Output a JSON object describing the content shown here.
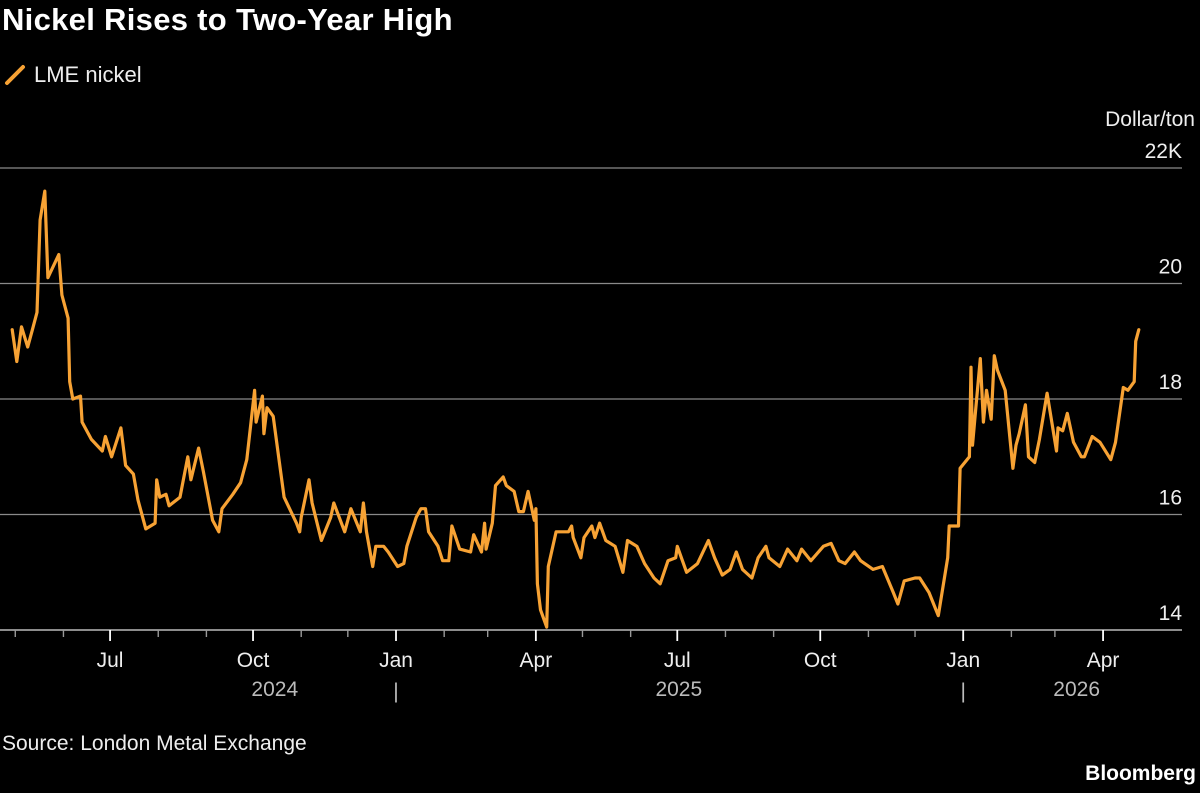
{
  "title": "Nickel Rises to Two-Year High",
  "source": "Source: London Metal Exchange",
  "brand": "Bloomberg",
  "colors": {
    "line": "#f7a234",
    "grid": "#8a8a8a",
    "background": "#000000"
  },
  "chart_data": {
    "type": "line",
    "title": "Nickel Rises to Two-Year High",
    "ylabel": "Dollar/ton",
    "ylim": [
      14,
      22
    ],
    "yticks": [
      {
        "value": 22,
        "label": "22K"
      },
      {
        "value": 20,
        "label": "20"
      },
      {
        "value": 18,
        "label": "18"
      },
      {
        "value": 16,
        "label": "16"
      },
      {
        "value": 14,
        "label": "14"
      }
    ],
    "xlim": [
      "2024-04-24",
      "2026-04-30"
    ],
    "xticks": [
      {
        "date": "2024-07-01",
        "label": "Jul"
      },
      {
        "date": "2024-10-01",
        "label": "Oct"
      },
      {
        "date": "2025-01-01",
        "label": "Jan"
      },
      {
        "date": "2025-04-01",
        "label": "Apr"
      },
      {
        "date": "2025-07-01",
        "label": "Jul"
      },
      {
        "date": "2025-10-01",
        "label": "Oct"
      },
      {
        "date": "2026-01-01",
        "label": "Jan"
      },
      {
        "date": "2026-04-01",
        "label": "Apr"
      }
    ],
    "years": [
      {
        "label": "2024",
        "center": "2024-10-15"
      },
      {
        "label": "2025",
        "center": "2025-07-02"
      },
      {
        "label": "2026",
        "center": "2026-03-15"
      }
    ],
    "year_separator": "|",
    "grid": true,
    "legend": "top-left",
    "series": [
      {
        "name": "LME nickel",
        "color": "#f7a234",
        "points": [
          [
            "2024-04-29",
            19.2
          ],
          [
            "2024-05-02",
            18.65
          ],
          [
            "2024-05-05",
            19.25
          ],
          [
            "2024-05-09",
            18.9
          ],
          [
            "2024-05-12",
            19.2
          ],
          [
            "2024-05-15",
            19.5
          ],
          [
            "2024-05-17",
            21.1
          ],
          [
            "2024-05-20",
            21.6
          ],
          [
            "2024-05-22",
            20.1
          ],
          [
            "2024-05-29",
            20.5
          ],
          [
            "2024-05-31",
            19.8
          ],
          [
            "2024-06-04",
            19.4
          ],
          [
            "2024-06-05",
            18.3
          ],
          [
            "2024-06-07",
            18.0
          ],
          [
            "2024-06-12",
            18.05
          ],
          [
            "2024-06-13",
            17.6
          ],
          [
            "2024-06-19",
            17.3
          ],
          [
            "2024-06-26",
            17.1
          ],
          [
            "2024-06-28",
            17.35
          ],
          [
            "2024-07-02",
            17.0
          ],
          [
            "2024-07-08",
            17.5
          ],
          [
            "2024-07-11",
            16.85
          ],
          [
            "2024-07-16",
            16.7
          ],
          [
            "2024-07-19",
            16.25
          ],
          [
            "2024-07-24",
            15.75
          ],
          [
            "2024-07-30",
            15.85
          ],
          [
            "2024-07-31",
            16.6
          ],
          [
            "2024-08-02",
            16.3
          ],
          [
            "2024-08-06",
            16.35
          ],
          [
            "2024-08-08",
            16.15
          ],
          [
            "2024-08-15",
            16.3
          ],
          [
            "2024-08-20",
            17.0
          ],
          [
            "2024-08-22",
            16.6
          ],
          [
            "2024-08-27",
            17.15
          ],
          [
            "2024-08-30",
            16.75
          ],
          [
            "2024-09-05",
            15.9
          ],
          [
            "2024-09-09",
            15.7
          ],
          [
            "2024-09-11",
            16.1
          ],
          [
            "2024-09-18",
            16.35
          ],
          [
            "2024-09-23",
            16.55
          ],
          [
            "2024-09-27",
            16.95
          ],
          [
            "2024-10-02",
            18.15
          ],
          [
            "2024-10-03",
            17.6
          ],
          [
            "2024-10-07",
            18.05
          ],
          [
            "2024-10-08",
            17.4
          ],
          [
            "2024-10-10",
            17.85
          ],
          [
            "2024-10-14",
            17.7
          ],
          [
            "2024-10-18",
            16.9
          ],
          [
            "2024-10-21",
            16.3
          ],
          [
            "2024-10-29",
            15.85
          ],
          [
            "2024-10-31",
            15.7
          ],
          [
            "2024-11-01",
            15.95
          ],
          [
            "2024-11-06",
            16.6
          ],
          [
            "2024-11-08",
            16.2
          ],
          [
            "2024-11-14",
            15.55
          ],
          [
            "2024-11-20",
            15.95
          ],
          [
            "2024-11-22",
            16.2
          ],
          [
            "2024-11-29",
            15.7
          ],
          [
            "2024-12-03",
            16.1
          ],
          [
            "2024-12-09",
            15.7
          ],
          [
            "2024-12-11",
            16.2
          ],
          [
            "2024-12-13",
            15.7
          ],
          [
            "2024-12-17",
            15.1
          ],
          [
            "2024-12-19",
            15.45
          ],
          [
            "2024-12-24",
            15.45
          ],
          [
            "2024-12-27",
            15.35
          ],
          [
            "2025-01-02",
            15.1
          ],
          [
            "2025-01-06",
            15.15
          ],
          [
            "2025-01-08",
            15.45
          ],
          [
            "2025-01-14",
            15.95
          ],
          [
            "2025-01-17",
            16.1
          ],
          [
            "2025-01-20",
            16.1
          ],
          [
            "2025-01-22",
            15.7
          ],
          [
            "2025-01-28",
            15.45
          ],
          [
            "2025-01-31",
            15.2
          ],
          [
            "2025-02-04",
            15.2
          ],
          [
            "2025-02-06",
            15.8
          ],
          [
            "2025-02-11",
            15.4
          ],
          [
            "2025-02-18",
            15.35
          ],
          [
            "2025-02-20",
            15.65
          ],
          [
            "2025-02-25",
            15.35
          ],
          [
            "2025-02-27",
            15.85
          ],
          [
            "2025-02-28",
            15.4
          ],
          [
            "2025-03-04",
            15.85
          ],
          [
            "2025-03-06",
            16.5
          ],
          [
            "2025-03-11",
            16.65
          ],
          [
            "2025-03-13",
            16.5
          ],
          [
            "2025-03-18",
            16.4
          ],
          [
            "2025-03-21",
            16.05
          ],
          [
            "2025-03-24",
            16.05
          ],
          [
            "2025-03-27",
            16.4
          ],
          [
            "2025-03-31",
            15.9
          ],
          [
            "2025-04-01",
            16.1
          ],
          [
            "2025-04-02",
            14.8
          ],
          [
            "2025-04-04",
            14.35
          ],
          [
            "2025-04-08",
            14.05
          ],
          [
            "2025-04-09",
            15.1
          ],
          [
            "2025-04-14",
            15.7
          ],
          [
            "2025-04-22",
            15.7
          ],
          [
            "2025-04-24",
            15.8
          ],
          [
            "2025-04-25",
            15.6
          ],
          [
            "2025-04-30",
            15.25
          ],
          [
            "2025-05-02",
            15.6
          ],
          [
            "2025-05-07",
            15.8
          ],
          [
            "2025-05-09",
            15.6
          ],
          [
            "2025-05-12",
            15.85
          ],
          [
            "2025-05-16",
            15.55
          ],
          [
            "2025-05-22",
            15.45
          ],
          [
            "2025-05-27",
            15.0
          ],
          [
            "2025-05-30",
            15.55
          ],
          [
            "2025-06-05",
            15.45
          ],
          [
            "2025-06-10",
            15.15
          ],
          [
            "2025-06-16",
            14.9
          ],
          [
            "2025-06-20",
            14.8
          ],
          [
            "2025-06-25",
            15.2
          ],
          [
            "2025-06-30",
            15.25
          ],
          [
            "2025-07-01",
            15.45
          ],
          [
            "2025-07-07",
            15.0
          ],
          [
            "2025-07-14",
            15.15
          ],
          [
            "2025-07-21",
            15.55
          ],
          [
            "2025-07-25",
            15.25
          ],
          [
            "2025-07-30",
            14.95
          ],
          [
            "2025-08-04",
            15.05
          ],
          [
            "2025-08-08",
            15.35
          ],
          [
            "2025-08-12",
            15.05
          ],
          [
            "2025-08-18",
            14.9
          ],
          [
            "2025-08-22",
            15.25
          ],
          [
            "2025-08-27",
            15.45
          ],
          [
            "2025-08-29",
            15.25
          ],
          [
            "2025-09-05",
            15.1
          ],
          [
            "2025-09-10",
            15.4
          ],
          [
            "2025-09-16",
            15.2
          ],
          [
            "2025-09-19",
            15.4
          ],
          [
            "2025-09-25",
            15.2
          ],
          [
            "2025-10-03",
            15.45
          ],
          [
            "2025-10-08",
            15.5
          ],
          [
            "2025-10-13",
            15.2
          ],
          [
            "2025-10-17",
            15.15
          ],
          [
            "2025-10-23",
            15.35
          ],
          [
            "2025-10-27",
            15.2
          ],
          [
            "2025-11-04",
            15.05
          ],
          [
            "2025-11-10",
            15.1
          ],
          [
            "2025-11-17",
            14.65
          ],
          [
            "2025-11-20",
            14.45
          ],
          [
            "2025-11-24",
            14.85
          ],
          [
            "2025-12-01",
            14.9
          ],
          [
            "2025-12-04",
            14.9
          ],
          [
            "2025-12-10",
            14.65
          ],
          [
            "2025-12-16",
            14.25
          ],
          [
            "2025-12-22",
            15.25
          ],
          [
            "2025-12-23",
            15.8
          ],
          [
            "2025-12-29",
            15.8
          ],
          [
            "2025-12-30",
            16.8
          ],
          [
            "2026-01-05",
            17.0
          ],
          [
            "2026-01-06",
            18.55
          ],
          [
            "2026-01-07",
            17.2
          ],
          [
            "2026-01-09",
            17.8
          ],
          [
            "2026-01-12",
            18.7
          ],
          [
            "2026-01-14",
            17.6
          ],
          [
            "2026-01-16",
            18.15
          ],
          [
            "2026-01-19",
            17.65
          ],
          [
            "2026-01-21",
            18.75
          ],
          [
            "2026-01-23",
            18.5
          ],
          [
            "2026-01-28",
            18.15
          ],
          [
            "2026-02-02",
            16.8
          ],
          [
            "2026-02-04",
            17.2
          ],
          [
            "2026-02-06",
            17.4
          ],
          [
            "2026-02-10",
            17.9
          ],
          [
            "2026-02-12",
            17.0
          ],
          [
            "2026-02-16",
            16.9
          ],
          [
            "2026-02-19",
            17.3
          ],
          [
            "2026-02-24",
            18.1
          ],
          [
            "2026-03-02",
            17.1
          ],
          [
            "2026-03-03",
            17.5
          ],
          [
            "2026-03-06",
            17.45
          ],
          [
            "2026-03-09",
            17.75
          ],
          [
            "2026-03-13",
            17.25
          ],
          [
            "2026-03-18",
            17.0
          ],
          [
            "2026-03-20",
            17.0
          ],
          [
            "2026-03-25",
            17.35
          ],
          [
            "2026-03-30",
            17.25
          ],
          [
            "2026-04-06",
            16.95
          ],
          [
            "2026-04-09",
            17.25
          ],
          [
            "2026-04-14",
            18.2
          ],
          [
            "2026-04-17",
            18.15
          ],
          [
            "2026-04-21",
            18.3
          ],
          [
            "2026-04-22",
            19.0
          ],
          [
            "2026-04-24",
            19.2
          ]
        ]
      }
    ]
  }
}
